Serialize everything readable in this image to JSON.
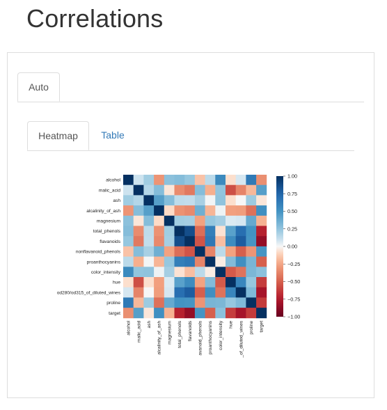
{
  "page": {
    "title": "Correlations"
  },
  "outer_tabs": [
    {
      "label": "Auto",
      "active": true
    }
  ],
  "inner_tabs": [
    {
      "label": "Heatmap",
      "active": true
    },
    {
      "label": "Table",
      "active": false
    }
  ],
  "chart_data": {
    "type": "heatmap",
    "variables": [
      "alcohol",
      "malic_acid",
      "ash",
      "alcalinity_of_ash",
      "magnesium",
      "total_phenols",
      "flavanoids",
      "nonflavanoid_phenols",
      "proanthocyanins",
      "color_intensity",
      "hue",
      "od280/od315_of_diluted_wines",
      "proline",
      "target"
    ],
    "x_tick_labels": [
      "alcohol",
      "malic_acid",
      "ash",
      "alcalinity_of_ash",
      "magnesium",
      "total_phenols",
      "flavanoids",
      "avanoid_phenols",
      "proanthocyanins",
      "color_intensity",
      "hue",
      "_of_diluted_wines",
      "proline",
      "target"
    ],
    "values": [
      [
        1.0,
        0.09,
        0.21,
        -0.31,
        0.27,
        0.29,
        0.24,
        -0.16,
        0.14,
        0.55,
        -0.07,
        0.07,
        0.64,
        -0.33
      ],
      [
        0.09,
        1.0,
        0.16,
        0.29,
        -0.05,
        -0.34,
        -0.41,
        0.29,
        -0.22,
        0.25,
        -0.56,
        -0.37,
        -0.19,
        0.44
      ],
      [
        0.21,
        0.16,
        1.0,
        0.44,
        0.29,
        0.13,
        0.12,
        0.19,
        0.01,
        0.26,
        -0.07,
        0.0,
        0.22,
        -0.05
      ],
      [
        -0.31,
        0.29,
        0.44,
        1.0,
        -0.08,
        -0.32,
        -0.35,
        0.36,
        -0.2,
        0.02,
        -0.27,
        -0.28,
        -0.44,
        0.52
      ],
      [
        0.27,
        -0.05,
        0.29,
        -0.08,
        1.0,
        0.21,
        0.2,
        -0.26,
        0.24,
        0.2,
        0.06,
        0.07,
        0.39,
        -0.21
      ],
      [
        0.29,
        -0.34,
        0.13,
        -0.32,
        0.21,
        1.0,
        0.86,
        -0.45,
        0.61,
        -0.06,
        0.43,
        0.7,
        0.5,
        -0.72
      ],
      [
        0.24,
        -0.41,
        0.12,
        -0.35,
        0.2,
        0.86,
        1.0,
        -0.54,
        0.65,
        -0.17,
        0.54,
        0.79,
        0.49,
        -0.85
      ],
      [
        -0.16,
        0.29,
        0.19,
        0.36,
        -0.26,
        -0.45,
        -0.54,
        1.0,
        -0.37,
        0.14,
        -0.26,
        -0.5,
        -0.31,
        0.49
      ],
      [
        0.14,
        -0.22,
        0.01,
        -0.2,
        0.24,
        0.61,
        0.65,
        -0.37,
        1.0,
        -0.03,
        0.3,
        0.52,
        0.33,
        -0.5
      ],
      [
        0.55,
        0.25,
        0.26,
        0.02,
        0.2,
        -0.06,
        -0.17,
        0.14,
        -0.03,
        1.0,
        -0.52,
        -0.43,
        0.32,
        0.27
      ],
      [
        -0.07,
        -0.56,
        -0.07,
        -0.27,
        0.06,
        0.43,
        0.54,
        -0.26,
        0.3,
        -0.52,
        1.0,
        0.57,
        0.24,
        -0.62
      ],
      [
        0.07,
        -0.37,
        0.0,
        -0.28,
        0.07,
        0.7,
        0.79,
        -0.5,
        0.52,
        -0.43,
        0.57,
        1.0,
        0.31,
        -0.79
      ],
      [
        0.64,
        -0.19,
        0.22,
        -0.44,
        0.39,
        0.5,
        0.49,
        -0.31,
        0.33,
        0.32,
        0.24,
        0.31,
        1.0,
        -0.63
      ],
      [
        -0.33,
        0.44,
        -0.05,
        0.52,
        -0.21,
        -0.72,
        -0.85,
        0.49,
        -0.5,
        0.27,
        -0.62,
        -0.79,
        -0.63,
        1.0
      ]
    ],
    "colorbar": {
      "range": [
        -1.0,
        1.0
      ],
      "ticks": [
        "1.00",
        "0.75",
        "0.50",
        "0.25",
        "0.00",
        "−0.25",
        "−0.50",
        "−0.75",
        "−1.00"
      ]
    },
    "colormap": "RdBu"
  }
}
